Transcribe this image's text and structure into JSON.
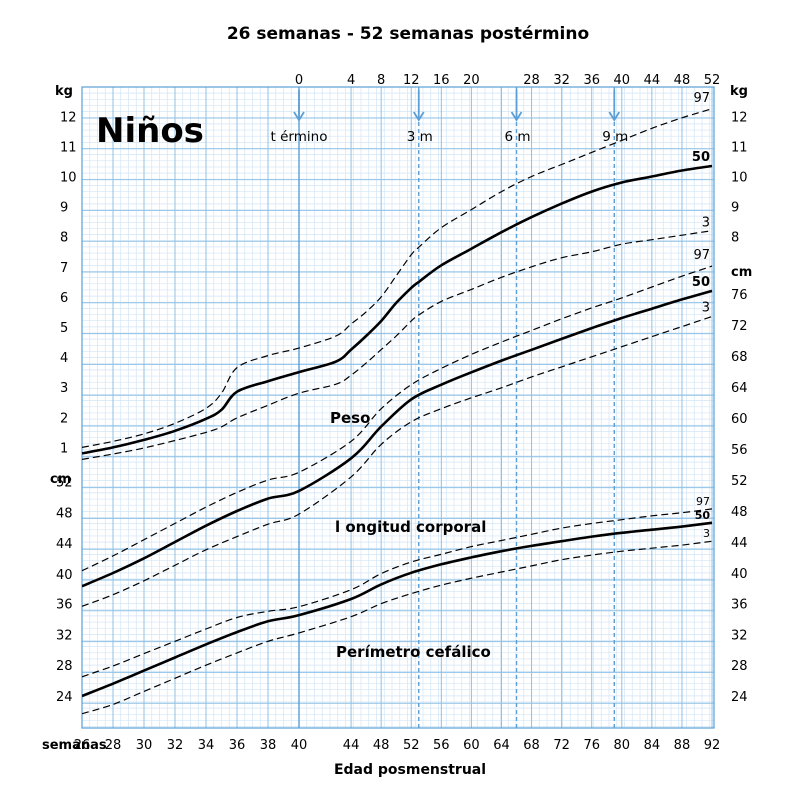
{
  "chart_data": {
    "type": "line",
    "title": "26 semanas - 52 semanas postérmino",
    "chart_label": "Niños",
    "xlabel": "Edad posmenstrual",
    "x_axis_prefix": "semanas",
    "x_ticks": [
      26,
      28,
      30,
      32,
      34,
      36,
      38,
      40,
      44,
      48,
      52,
      56,
      60,
      64,
      68,
      72,
      76,
      80,
      84,
      88,
      92
    ],
    "xlim": [
      26,
      92
    ],
    "top_axis_ticks": [
      0,
      4,
      8,
      12,
      16,
      20,
      28,
      32,
      36,
      40,
      44,
      48,
      52
    ],
    "top_axis_note": "weeks post-term; value = postmenstrual week minus 40",
    "grid": true,
    "markers": [
      {
        "label": "t érmino",
        "x": 40,
        "line": "solid"
      },
      {
        "label": "3 m",
        "x": 53,
        "line": "dashed"
      },
      {
        "label": "6 m",
        "x": 66,
        "line": "dashed"
      },
      {
        "label": "9 m",
        "x": 79,
        "line": "dashed"
      }
    ],
    "weight": {
      "label": "Peso",
      "unit": "kg",
      "left_ticks": [
        "1",
        "2",
        "3",
        "4",
        "5",
        "6",
        "7",
        "8",
        "9",
        "10",
        "11",
        "12"
      ],
      "right_ticks": [
        "8",
        "9",
        "10",
        "11",
        "12"
      ],
      "ylim": [
        0,
        13
      ],
      "x": [
        26,
        28,
        30,
        32,
        34,
        35,
        36,
        38,
        40,
        42,
        44,
        46,
        48,
        50,
        52,
        53,
        56,
        60,
        64,
        68,
        72,
        76,
        80,
        84,
        88,
        92
      ],
      "series": [
        {
          "name": "97",
          "values": [
            1.0,
            1.2,
            1.45,
            1.8,
            2.3,
            2.8,
            3.65,
            4.05,
            4.3,
            4.7,
            5.1,
            5.5,
            6.0,
            6.7,
            7.4,
            7.65,
            8.3,
            8.9,
            9.5,
            10.0,
            10.4,
            10.8,
            11.2,
            11.6,
            11.95,
            12.25
          ],
          "style": "dashed"
        },
        {
          "name": "50",
          "values": [
            0.8,
            1.0,
            1.25,
            1.55,
            1.95,
            2.25,
            2.85,
            3.2,
            3.5,
            3.85,
            4.25,
            4.7,
            5.2,
            5.8,
            6.3,
            6.5,
            7.05,
            7.6,
            8.15,
            8.65,
            9.1,
            9.5,
            9.8,
            10.0,
            10.2,
            10.35
          ],
          "style": "solid"
        },
        {
          "name": "3",
          "values": [
            0.6,
            0.78,
            0.98,
            1.23,
            1.5,
            1.68,
            1.98,
            2.4,
            2.8,
            3.1,
            3.4,
            3.8,
            4.25,
            4.7,
            5.2,
            5.4,
            5.85,
            6.25,
            6.65,
            7.0,
            7.3,
            7.5,
            7.75,
            7.9,
            8.05,
            8.2
          ],
          "style": "dashed"
        }
      ]
    },
    "length": {
      "label": "l ongitud corporal",
      "unit": "cm",
      "right_unit": "cm",
      "left_ticks": [
        "40",
        "44",
        "48",
        "52"
      ],
      "right_ticks": [
        "48",
        "52",
        "56",
        "60",
        "64",
        "68",
        "72",
        "76"
      ],
      "ylim": [
        36,
        82
      ],
      "x": [
        26,
        28,
        30,
        32,
        34,
        36,
        38,
        40,
        44,
        48,
        52,
        56,
        60,
        64,
        68,
        72,
        76,
        80,
        84,
        88,
        92
      ],
      "series": [
        {
          "name": "97",
          "values": [
            40.3,
            42.2,
            44.3,
            46.4,
            48.5,
            50.4,
            52.0,
            53.0,
            57.0,
            61.2,
            64.3,
            66.4,
            68.2,
            69.8,
            71.3,
            72.8,
            74.2,
            75.5,
            76.9,
            78.3,
            79.6
          ],
          "style": "dashed"
        },
        {
          "name": "50",
          "values": [
            38.3,
            40.0,
            41.9,
            44.0,
            46.1,
            48.0,
            49.6,
            50.6,
            54.8,
            58.9,
            62.4,
            64.3,
            65.9,
            67.4,
            68.8,
            70.2,
            71.6,
            72.9,
            74.1,
            75.3,
            76.4
          ],
          "style": "solid"
        },
        {
          "name": "3",
          "values": [
            35.7,
            37.2,
            39.0,
            41.0,
            43.0,
            44.7,
            46.3,
            47.6,
            52.4,
            56.6,
            59.5,
            61.2,
            62.6,
            63.9,
            65.3,
            66.6,
            67.9,
            69.2,
            70.5,
            71.8,
            73.1
          ],
          "style": "dashed"
        }
      ]
    },
    "head": {
      "label": "Perímetro cefálico",
      "unit": "cm",
      "left_ticks": [
        "24",
        "28",
        "32",
        "36",
        "40",
        "44",
        "48"
      ],
      "right_ticks": [
        "24",
        "28",
        "32",
        "36",
        "40",
        "44",
        "48"
      ],
      "ylim": [
        20,
        52
      ],
      "x": [
        26,
        28,
        30,
        32,
        34,
        36,
        38,
        40,
        44,
        48,
        52,
        56,
        60,
        64,
        68,
        72,
        76,
        80,
        84,
        88,
        92
      ],
      "series": [
        {
          "name": "97",
          "values": [
            26.5,
            27.9,
            29.5,
            31.1,
            32.7,
            34.2,
            35.0,
            35.6,
            37.8,
            39.9,
            41.4,
            42.4,
            43.4,
            44.2,
            45.0,
            45.8,
            46.4,
            46.9,
            47.4,
            47.8,
            48.3
          ],
          "style": "dashed"
        },
        {
          "name": "50",
          "values": [
            24.0,
            25.6,
            27.3,
            29.0,
            30.7,
            32.3,
            33.7,
            34.5,
            36.6,
            38.5,
            40.0,
            41.1,
            42.0,
            42.8,
            43.5,
            44.1,
            44.7,
            45.2,
            45.6,
            46.0,
            46.5
          ],
          "style": "solid"
        },
        {
          "name": "3",
          "values": [
            21.7,
            22.9,
            24.6,
            26.3,
            28.0,
            29.6,
            31.1,
            32.2,
            34.3,
            36.0,
            37.3,
            38.4,
            39.3,
            40.1,
            40.9,
            41.7,
            42.3,
            42.8,
            43.2,
            43.6,
            44.1
          ],
          "style": "dashed"
        }
      ]
    }
  }
}
